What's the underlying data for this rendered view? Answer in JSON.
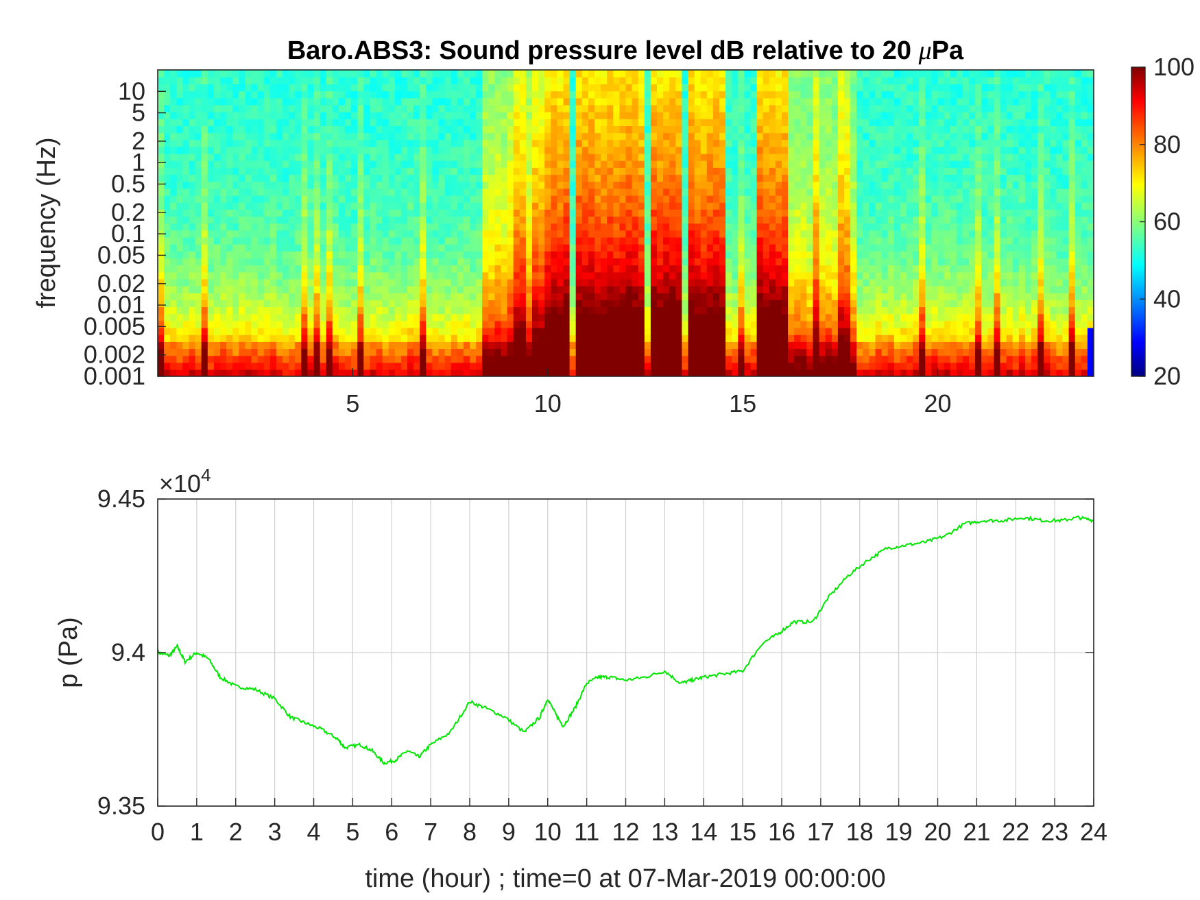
{
  "chart_data": [
    {
      "type": "heatmap",
      "title_main": "Baro.ABS3: Sound pressure level dB relative to 20 ",
      "title_greek": "μ",
      "title_end": "Pa",
      "ylabel": "frequency (Hz)",
      "y_scale": "log",
      "ylim": [
        0.001,
        20
      ],
      "xlim": [
        0,
        24
      ],
      "x_ticks": [
        "5",
        "10",
        "15",
        "20"
      ],
      "y_ticks": [
        "10",
        "5",
        "2",
        "1",
        "0.5",
        "0.2",
        "0.1",
        "0.05",
        "0.02",
        "0.01",
        "0.005",
        "0.002",
        "0.001"
      ],
      "colormap": "jet",
      "colorbar": {
        "min": 20,
        "max": 100,
        "ticks": [
          "100",
          "80",
          "60",
          "40",
          "20"
        ]
      },
      "high_energy_bands_hours": [
        [
          9.9,
          10.6
        ],
        [
          10.8,
          12.4
        ],
        [
          12.6,
          13.4
        ],
        [
          13.6,
          14.6
        ],
        [
          15.4,
          16.1
        ]
      ]
    },
    {
      "type": "line",
      "ylabel": "p (Pa)",
      "xlabel": "time (hour) ; time=0 at 07-Mar-2019 00:00:00",
      "y_multiplier": "×10",
      "y_multiplier_exp": "4",
      "xlim": [
        0,
        24
      ],
      "ylim": [
        9.35,
        9.45
      ],
      "y_ticks": [
        "9.45",
        "9.4",
        "9.35"
      ],
      "x_ticks": [
        "0",
        "1",
        "2",
        "3",
        "4",
        "5",
        "6",
        "7",
        "8",
        "9",
        "10",
        "11",
        "12",
        "13",
        "14",
        "15",
        "16",
        "17",
        "18",
        "19",
        "20",
        "21",
        "22",
        "23",
        "24"
      ],
      "grid": true,
      "line_color": "#00e600",
      "x": [
        0,
        0.3,
        0.5,
        0.7,
        1.0,
        1.3,
        1.6,
        2.0,
        2.5,
        3.0,
        3.4,
        3.8,
        4.2,
        4.6,
        4.8,
        5.2,
        5.5,
        5.8,
        6.1,
        6.4,
        6.7,
        7.0,
        7.5,
        8.0,
        8.4,
        8.9,
        9.4,
        9.8,
        10.0,
        10.2,
        10.4,
        10.7,
        11.0,
        11.3,
        11.6,
        12.0,
        12.5,
        13.0,
        13.4,
        13.7,
        14.0,
        14.5,
        15.0,
        15.5,
        15.9,
        16.3,
        16.8,
        17.2,
        17.7,
        18.2,
        18.7,
        19.2,
        19.7,
        20.2,
        20.7,
        21.2,
        21.7,
        22.2,
        22.7,
        23.2,
        23.6,
        24.0
      ],
      "y": [
        9.4,
        9.399,
        9.402,
        9.397,
        9.4,
        9.398,
        9.392,
        9.389,
        9.388,
        9.385,
        9.379,
        9.377,
        9.375,
        9.372,
        9.369,
        9.37,
        9.368,
        9.364,
        9.365,
        9.368,
        9.366,
        9.37,
        9.374,
        9.384,
        9.382,
        9.379,
        9.374,
        9.379,
        9.385,
        9.38,
        9.376,
        9.382,
        9.39,
        9.392,
        9.392,
        9.391,
        9.392,
        9.394,
        9.39,
        9.391,
        9.392,
        9.393,
        9.394,
        9.403,
        9.406,
        9.41,
        9.41,
        9.418,
        9.425,
        9.43,
        9.434,
        9.435,
        9.436,
        9.438,
        9.442,
        9.443,
        9.443,
        9.444,
        9.443,
        9.443,
        9.444,
        9.443
      ]
    }
  ]
}
